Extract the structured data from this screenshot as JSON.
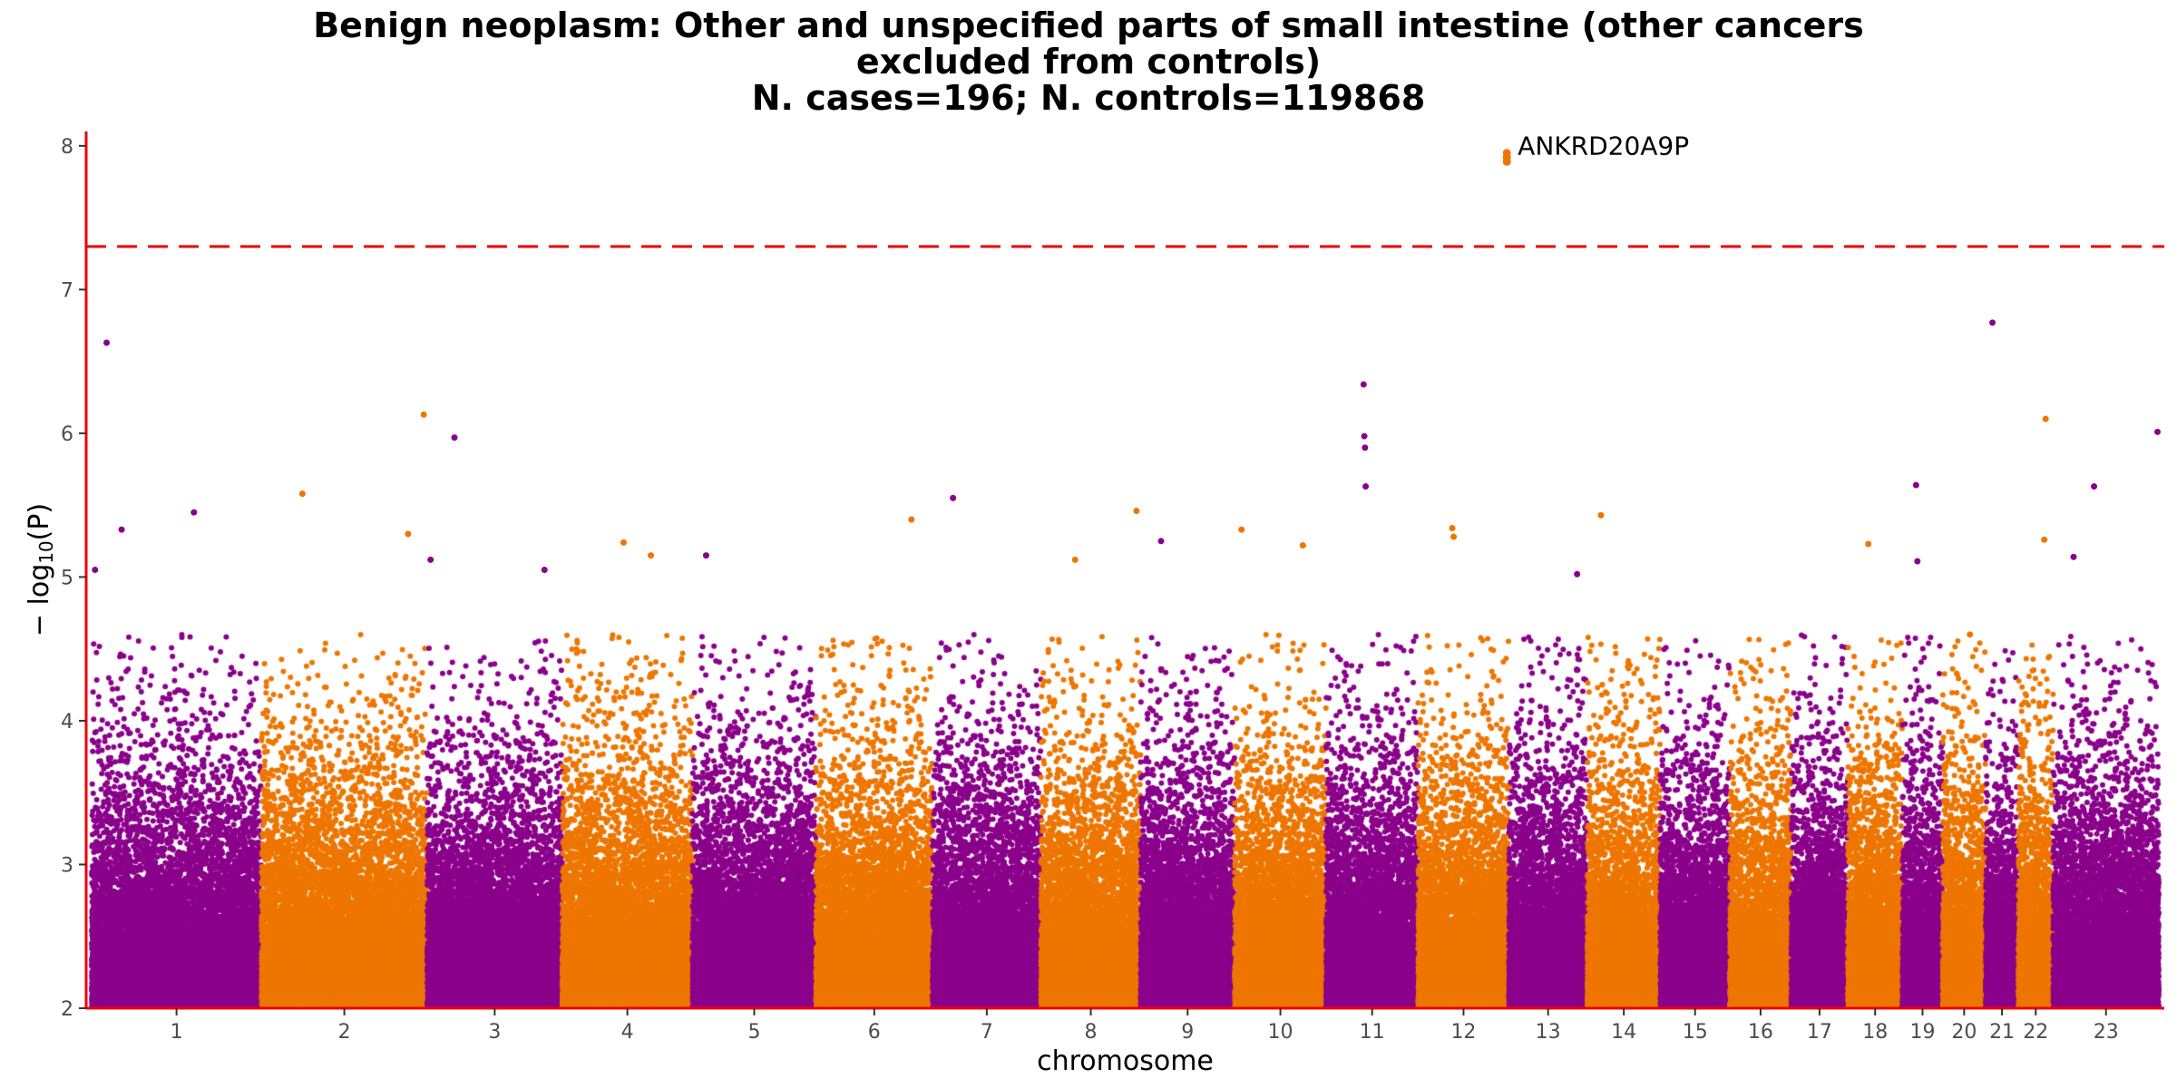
{
  "chart_data": {
    "type": "scatter",
    "subtype": "manhattan",
    "title_lines": [
      "Benign neoplasm: Other and unspecified parts of small intestine (other cancers",
      "excluded from controls)",
      "N. cases=196; N. controls=119868"
    ],
    "xlabel": "chromosome",
    "ylabel": "−log10(P)",
    "ylim": [
      2,
      8.1
    ],
    "y_ticks": [
      2,
      3,
      4,
      5,
      6,
      7,
      8
    ],
    "significance_line": 7.3,
    "colors": {
      "odd": "#8B008B",
      "even": "#EE7600",
      "threshold": "#EE0000",
      "axis": "#EE0000"
    },
    "chromosomes": [
      {
        "label": "1",
        "length": 249
      },
      {
        "label": "2",
        "length": 243
      },
      {
        "label": "3",
        "length": 198
      },
      {
        "label": "4",
        "length": 191
      },
      {
        "label": "5",
        "length": 181
      },
      {
        "label": "6",
        "length": 171
      },
      {
        "label": "7",
        "length": 159
      },
      {
        "label": "8",
        "length": 146
      },
      {
        "label": "9",
        "length": 138
      },
      {
        "label": "10",
        "length": 134
      },
      {
        "label": "11",
        "length": 135
      },
      {
        "label": "12",
        "length": 133
      },
      {
        "label": "13",
        "length": 115
      },
      {
        "label": "14",
        "length": 107
      },
      {
        "label": "15",
        "length": 102
      },
      {
        "label": "16",
        "length": 90
      },
      {
        "label": "17",
        "length": 83
      },
      {
        "label": "18",
        "length": 80
      },
      {
        "label": "19",
        "length": 59
      },
      {
        "label": "20",
        "length": 63
      },
      {
        "label": "21",
        "length": 48
      },
      {
        "label": "22",
        "length": 51
      },
      {
        "label": "23",
        "length": 155
      }
    ],
    "top_hits": [
      {
        "chr": "1",
        "pos": 22,
        "p": 6.63
      },
      {
        "chr": "1",
        "pos": 44,
        "p": 5.33
      },
      {
        "chr": "1",
        "pos": 150,
        "p": 5.45
      },
      {
        "chr": "1",
        "pos": 5,
        "p": 5.05
      },
      {
        "chr": "2",
        "pos": 215,
        "p": 5.3
      },
      {
        "chr": "2",
        "pos": 238,
        "p": 6.13
      },
      {
        "chr": "2",
        "pos": 60,
        "p": 5.58
      },
      {
        "chr": "3",
        "pos": 40,
        "p": 5.97
      },
      {
        "chr": "3",
        "pos": 5,
        "p": 5.12
      },
      {
        "chr": "3",
        "pos": 172,
        "p": 5.05
      },
      {
        "chr": "4",
        "pos": 90,
        "p": 5.24
      },
      {
        "chr": "4",
        "pos": 130,
        "p": 5.15
      },
      {
        "chr": "5",
        "pos": 20,
        "p": 5.15
      },
      {
        "chr": "6",
        "pos": 140,
        "p": 5.4
      },
      {
        "chr": "7",
        "pos": 30,
        "p": 5.55
      },
      {
        "chr": "8",
        "pos": 50,
        "p": 5.12
      },
      {
        "chr": "8",
        "pos": 140,
        "p": 5.46
      },
      {
        "chr": "9",
        "pos": 30,
        "p": 5.25
      },
      {
        "chr": "10",
        "pos": 10,
        "p": 5.33
      },
      {
        "chr": "10",
        "pos": 100,
        "p": 5.22
      },
      {
        "chr": "11",
        "pos": 55,
        "p": 6.34
      },
      {
        "chr": "11",
        "pos": 56,
        "p": 5.98
      },
      {
        "chr": "11",
        "pos": 57,
        "p": 5.9
      },
      {
        "chr": "11",
        "pos": 58,
        "p": 5.63
      },
      {
        "chr": "12",
        "pos": 50,
        "p": 5.34
      },
      {
        "chr": "12",
        "pos": 52,
        "p": 5.28
      },
      {
        "chr": "14",
        "pos": 20,
        "p": 5.43
      },
      {
        "chr": "13",
        "pos": 100,
        "p": 5.02
      },
      {
        "chr": "18",
        "pos": 30,
        "p": 5.23
      },
      {
        "chr": "19",
        "pos": 20,
        "p": 5.64
      },
      {
        "chr": "19",
        "pos": 22,
        "p": 5.11
      },
      {
        "chr": "20",
        "pos": 40,
        "p": 4.6
      },
      {
        "chr": "21",
        "pos": 10,
        "p": 6.77
      },
      {
        "chr": "22",
        "pos": 40,
        "p": 6.1
      },
      {
        "chr": "22",
        "pos": 38,
        "p": 5.26
      },
      {
        "chr": "23",
        "pos": 60,
        "p": 5.63
      },
      {
        "chr": "23",
        "pos": 30,
        "p": 5.14
      },
      {
        "chr": "23",
        "pos": 153,
        "p": 6.01
      }
    ],
    "annotations": [
      {
        "label": "ANKRD20A9P",
        "chr": "12",
        "pos": 130,
        "p": 7.92
      }
    ]
  }
}
